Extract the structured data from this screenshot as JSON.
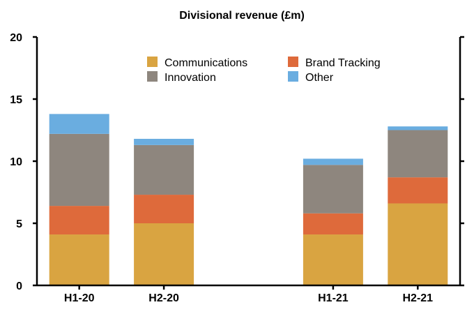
{
  "chart_data": {
    "type": "bar",
    "stacked": true,
    "title": "Divisional revenue (£m)",
    "xlabel": "",
    "ylabel": "",
    "ylim": [
      0,
      20
    ],
    "yticks": [
      0,
      5,
      10,
      15,
      20
    ],
    "categories": [
      "H1-20",
      "H2-20",
      "",
      "H1-21",
      "H2-21"
    ],
    "series": [
      {
        "name": "Communications",
        "color": "#d9a441",
        "values": [
          4.1,
          5.0,
          0,
          4.1,
          6.6
        ]
      },
      {
        "name": "Brand Tracking",
        "color": "#de6a3b",
        "values": [
          2.3,
          2.3,
          0,
          1.7,
          2.1
        ]
      },
      {
        "name": "Innovation",
        "color": "#8e867e",
        "values": [
          5.8,
          4.0,
          0,
          3.9,
          3.8
        ]
      },
      {
        "name": "Other",
        "color": "#6aade0",
        "values": [
          1.6,
          0.5,
          0,
          0.5,
          0.3
        ]
      }
    ],
    "legend_position": "top-center",
    "grid": false
  }
}
